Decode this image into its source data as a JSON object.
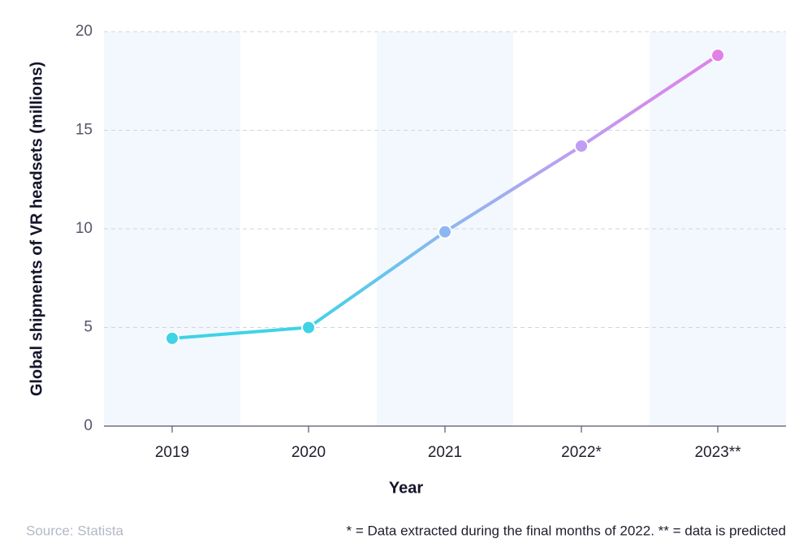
{
  "chart_data": {
    "type": "line",
    "y_label": "Global shipments of VR headsets (millions)",
    "x_label": "Year",
    "source": "Source: Statista",
    "note": "* = Data extracted during the final months of 2022. ** = data is predicted",
    "categories": [
      "2019",
      "2020",
      "2021",
      "2022*",
      "2023**"
    ],
    "series": [
      {
        "values": [
          4.45,
          5.0,
          9.85,
          14.2,
          18.8
        ],
        "point_colors": [
          "#3fd3e6",
          "#3fd3e6",
          "#8bb8f0",
          "#bf9df0",
          "#e27fe9"
        ]
      }
    ],
    "ylim": [
      0,
      20
    ],
    "yticks": [
      0,
      5,
      10,
      15,
      20
    ],
    "grid": true,
    "band_color": "#f3f8fe"
  }
}
